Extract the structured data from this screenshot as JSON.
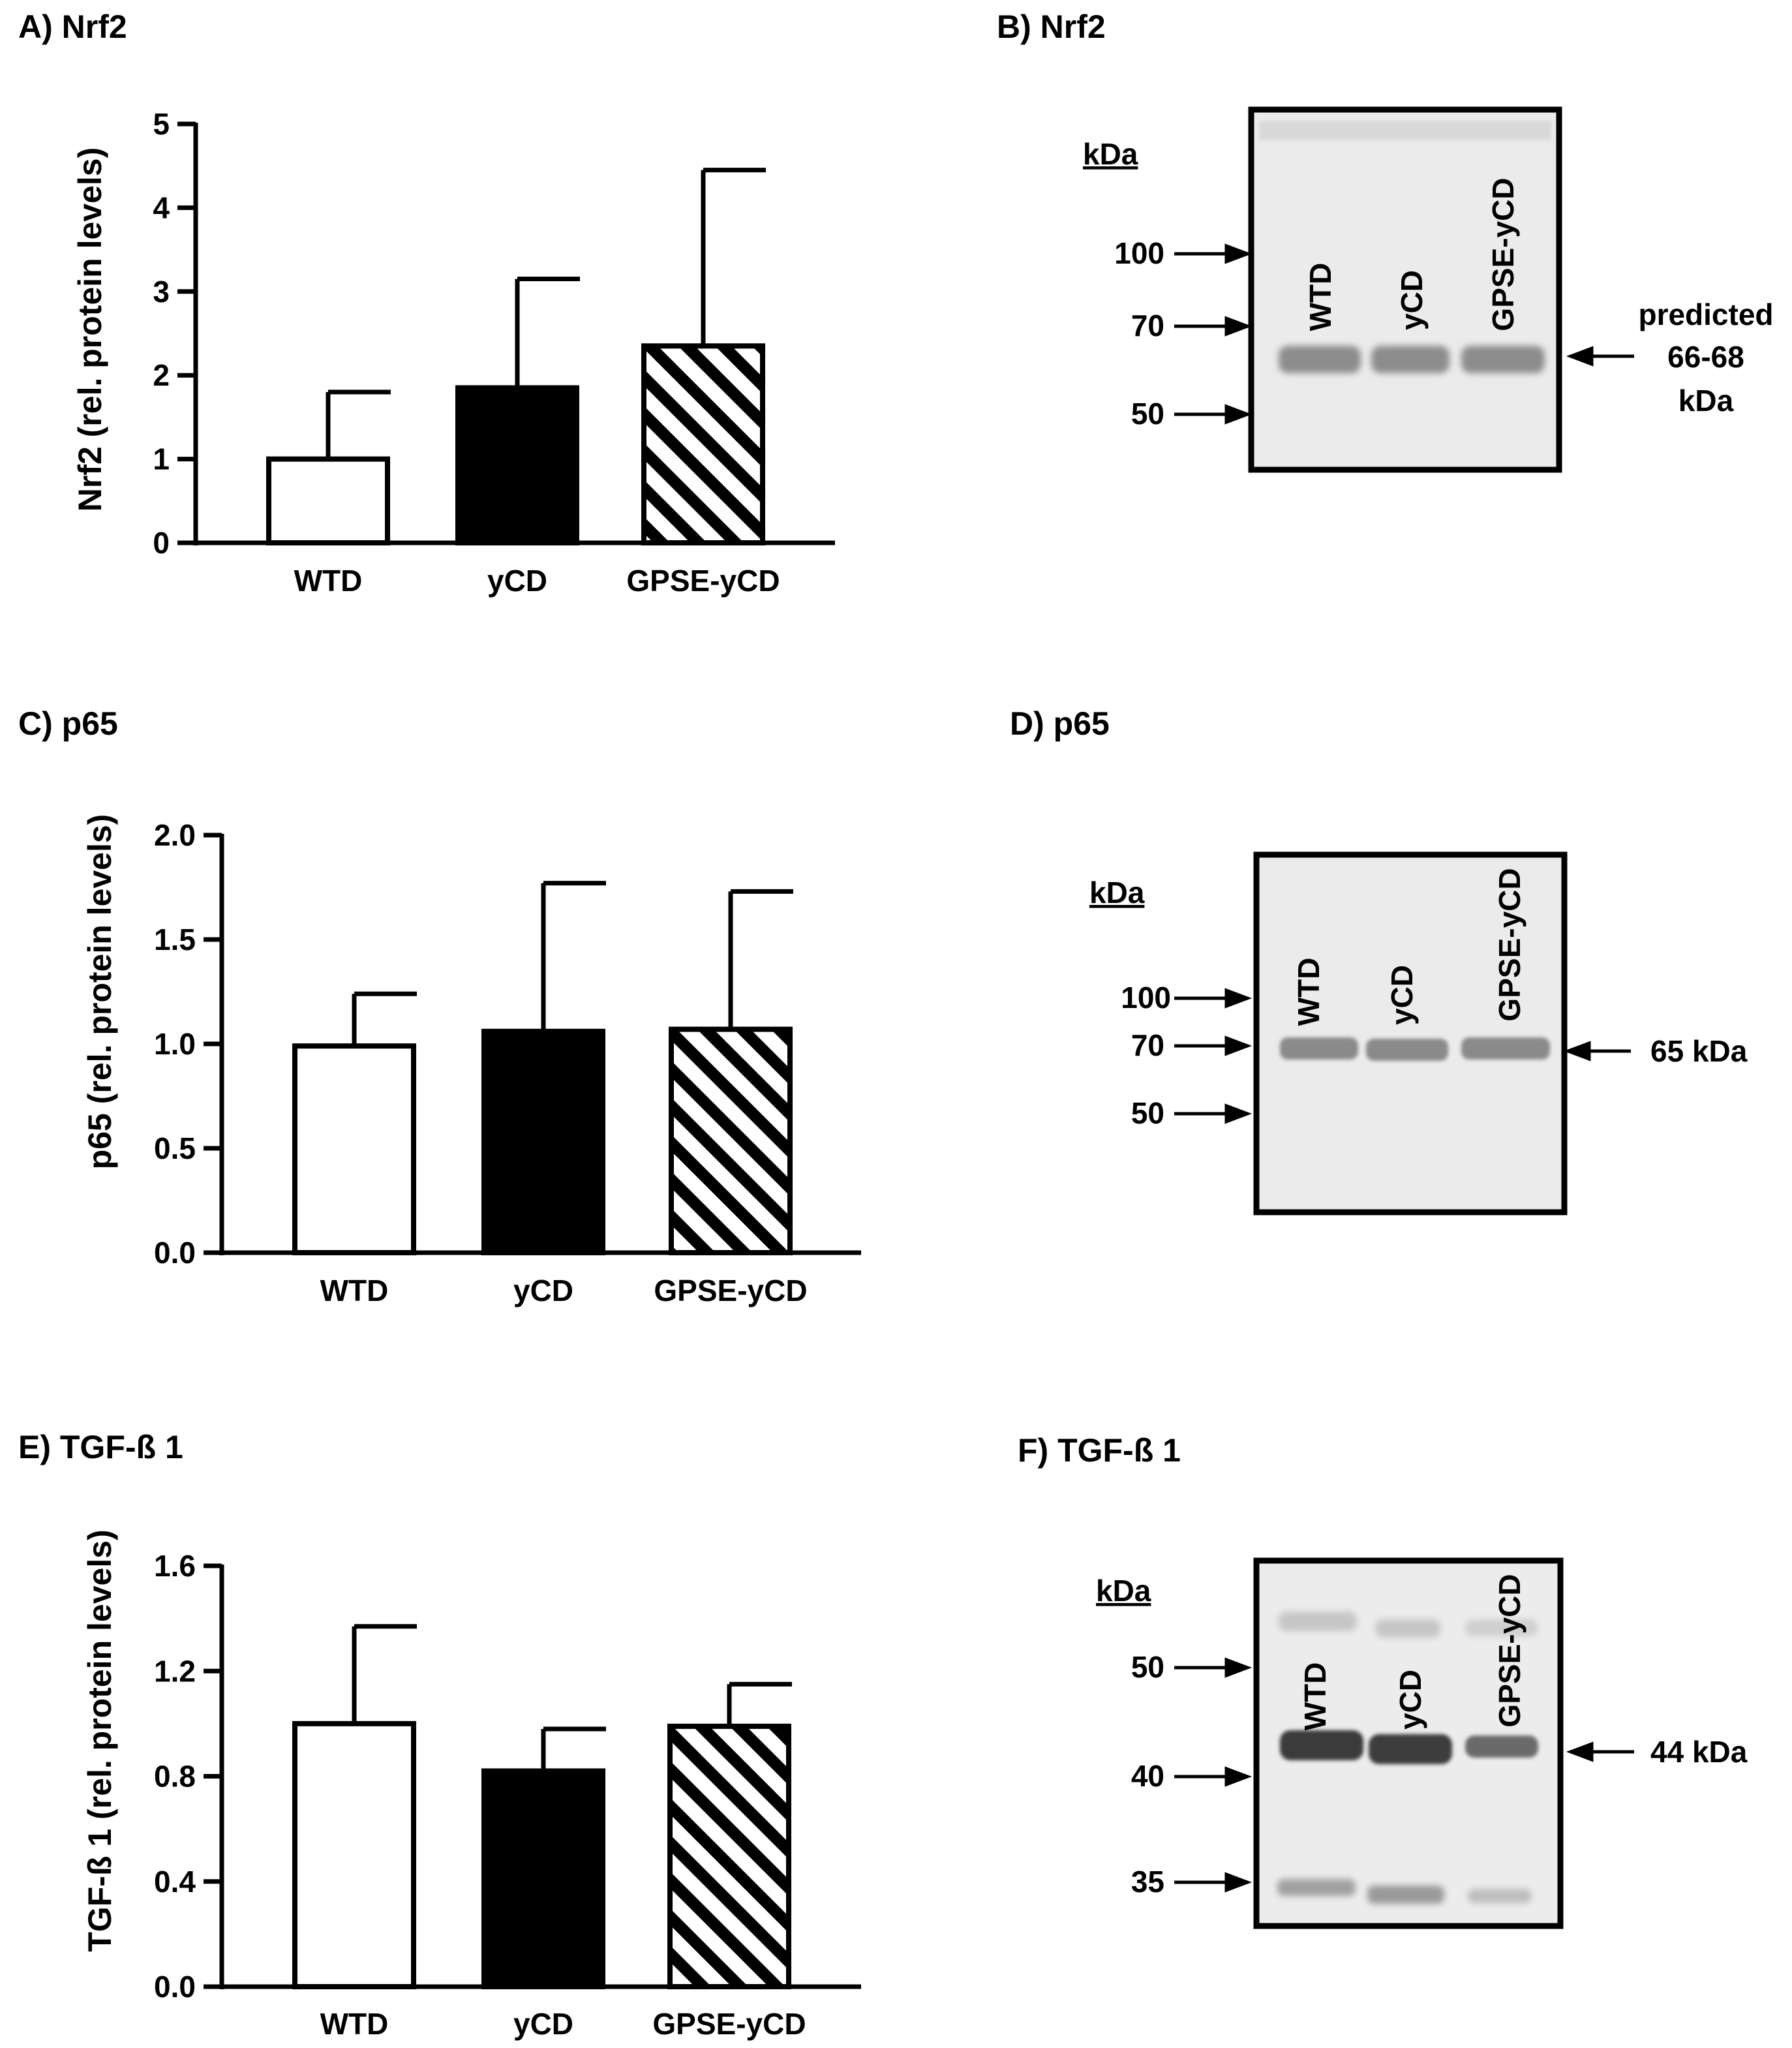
{
  "colors": {
    "ink": "#000000",
    "paper": "#ffffff",
    "blot_bg": "#e6e6e6",
    "band": "#8a8a8a"
  },
  "charts": [
    {
      "id": "A",
      "panel_label": "A) Nrf2",
      "chart_data": {
        "type": "bar",
        "title": "Nrf2",
        "ylabel": "Nrf2 (rel. protein levels)",
        "xlabel": "",
        "categories": [
          "WTD",
          "yCD",
          "GPSE-yCD"
        ],
        "values": [
          1.0,
          1.85,
          2.35
        ],
        "errors": [
          0.8,
          1.3,
          2.1
        ],
        "fills": [
          "white",
          "black",
          "hatched"
        ],
        "ylim": [
          0,
          5
        ],
        "yticks": [
          "0",
          "1",
          "2",
          "3",
          "4",
          "5"
        ]
      }
    },
    {
      "id": "C",
      "panel_label": "C) p65",
      "chart_data": {
        "type": "bar",
        "title": "p65",
        "ylabel": "p65 (rel. protein levels)",
        "xlabel": "",
        "categories": [
          "WTD",
          "yCD",
          "GPSE-yCD"
        ],
        "values": [
          0.99,
          1.06,
          1.07
        ],
        "errors": [
          0.25,
          0.71,
          0.66
        ],
        "fills": [
          "white",
          "black",
          "hatched"
        ],
        "ylim": [
          0,
          2
        ],
        "yticks": [
          "0.0",
          "0.5",
          "1.0",
          "1.5",
          "2.0"
        ]
      }
    },
    {
      "id": "E",
      "panel_label": "E) TGF-ß 1",
      "chart_data": {
        "type": "bar",
        "title": "TGF-ß 1",
        "ylabel": "TGF-ß 1 (rel. protein levels)",
        "xlabel": "",
        "categories": [
          "WTD",
          "yCD",
          "GPSE-yCD"
        ],
        "values": [
          1.0,
          0.82,
          0.99
        ],
        "errors": [
          0.37,
          0.16,
          0.16
        ],
        "fills": [
          "white",
          "black",
          "hatched"
        ],
        "ylim": [
          0,
          1.6
        ],
        "yticks": [
          "0.0",
          "0.4",
          "0.8",
          "1.2",
          "1.6"
        ]
      }
    }
  ],
  "blots": [
    {
      "id": "B",
      "panel_label": "B) Nrf2",
      "kda_label": "kDa",
      "lanes": [
        "WTD",
        "yCD",
        "GPSE-yCD"
      ],
      "markers": [
        "100",
        "70",
        "50"
      ],
      "band_label": [
        "predicted",
        "66-68",
        "kDa"
      ]
    },
    {
      "id": "D",
      "panel_label": "D) p65",
      "kda_label": "kDa",
      "lanes": [
        "WTD",
        "yCD",
        "GPSE-yCD"
      ],
      "markers": [
        "100",
        "70",
        "50"
      ],
      "band_label": [
        "65 kDa"
      ]
    },
    {
      "id": "F",
      "panel_label": "F) TGF-ß 1",
      "kda_label": "kDa",
      "lanes": [
        "WTD",
        "yCD",
        "GPSE-yCD"
      ],
      "markers": [
        "50",
        "40",
        "35"
      ],
      "band_label": [
        "44 kDa"
      ]
    }
  ]
}
